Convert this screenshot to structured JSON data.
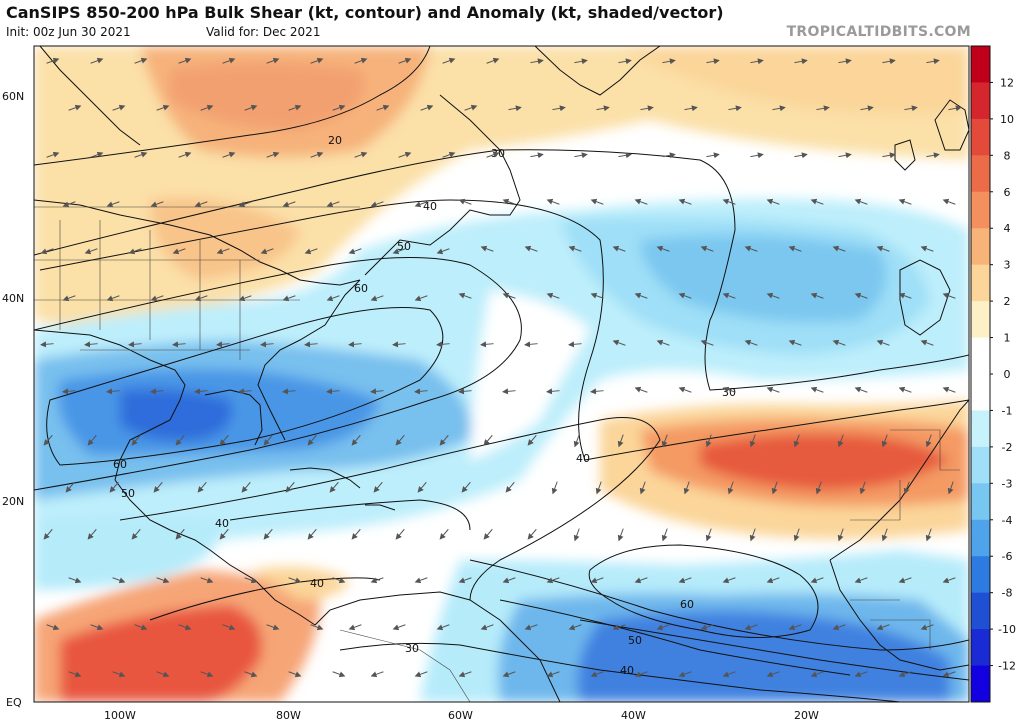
{
  "header": {
    "title": "CanSIPS 850-200 hPa Bulk Shear (kt, contour) and Anomaly (kt, shaded/vector)",
    "init": "Init: 00z Jun 30 2021",
    "valid": "Valid for: Dec 2021",
    "credit": "TROPICALTIDBITS.COM"
  },
  "map": {
    "lat_labels": [
      "60N",
      "40N",
      "20N",
      "EQ"
    ],
    "lon_labels": [
      "100W",
      "80W",
      "60W",
      "40W",
      "20W"
    ],
    "contour_labels": [
      "20",
      "30",
      "40",
      "50",
      "60",
      "60",
      "50",
      "40",
      "40",
      "40",
      "30",
      "40",
      "60",
      "50",
      "40",
      "30",
      "30"
    ]
  },
  "colorbar": {
    "labels": [
      "12",
      "10",
      "8",
      "6",
      "4",
      "3",
      "2",
      "1",
      "0",
      "-1",
      "-2",
      "-3",
      "-4",
      "-6",
      "-8",
      "-10",
      "-12"
    ],
    "colors": [
      "#c0001a",
      "#d5252d",
      "#e34a3a",
      "#ec6b49",
      "#f3905e",
      "#f8b378",
      "#fbd59a",
      "#fdf0c6",
      "#ffffff",
      "#ffffff",
      "#c7f1fb",
      "#9fdff7",
      "#78c7f1",
      "#4ea3ea",
      "#2d7ae0",
      "#1f4fd3",
      "#1a2bd6",
      "#1200e0"
    ]
  }
}
